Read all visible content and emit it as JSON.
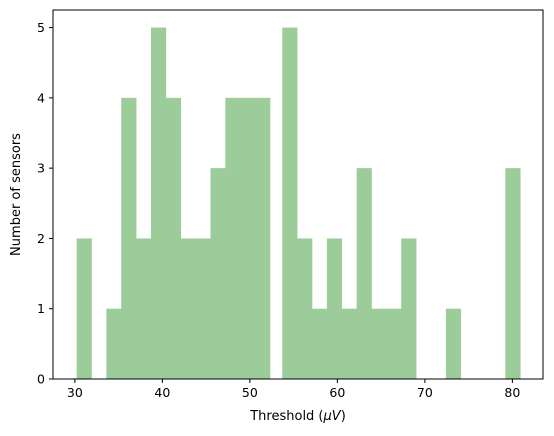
{
  "chart_data": {
    "type": "bar",
    "subtype": "histogram",
    "title": "",
    "xlabel": "Threshold (",
    "xlabel_unit": "μV",
    "xlabel_close": ")",
    "ylabel": "Number of sensors",
    "xlim": [
      27.5,
      83.5
    ],
    "ylim": [
      0,
      5.25
    ],
    "x_ticks": [
      30,
      40,
      50,
      60,
      70,
      80
    ],
    "y_ticks": [
      0,
      1,
      2,
      3,
      4,
      5
    ],
    "bar_color": "#9BCC99",
    "bins": [
      {
        "x0": 30.2,
        "x1": 31.9,
        "count": 2
      },
      {
        "x0": 33.6,
        "x1": 35.3,
        "count": 1
      },
      {
        "x0": 35.3,
        "x1": 37.0,
        "count": 4
      },
      {
        "x0": 37.0,
        "x1": 38.7,
        "count": 2
      },
      {
        "x0": 38.7,
        "x1": 40.4,
        "count": 5
      },
      {
        "x0": 40.4,
        "x1": 42.1,
        "count": 4
      },
      {
        "x0": 42.1,
        "x1": 43.8,
        "count": 2
      },
      {
        "x0": 43.8,
        "x1": 45.5,
        "count": 2
      },
      {
        "x0": 45.5,
        "x1": 47.2,
        "count": 3
      },
      {
        "x0": 47.2,
        "x1": 48.9,
        "count": 4
      },
      {
        "x0": 48.9,
        "x1": 50.6,
        "count": 4
      },
      {
        "x0": 50.6,
        "x1": 52.3,
        "count": 4
      },
      {
        "x0": 53.7,
        "x1": 55.4,
        "count": 5
      },
      {
        "x0": 55.4,
        "x1": 57.1,
        "count": 2
      },
      {
        "x0": 57.1,
        "x1": 58.8,
        "count": 1
      },
      {
        "x0": 58.8,
        "x1": 60.5,
        "count": 2
      },
      {
        "x0": 60.5,
        "x1": 62.2,
        "count": 1
      },
      {
        "x0": 62.2,
        "x1": 63.9,
        "count": 3
      },
      {
        "x0": 63.9,
        "x1": 65.6,
        "count": 1
      },
      {
        "x0": 65.6,
        "x1": 67.3,
        "count": 1
      },
      {
        "x0": 67.3,
        "x1": 69.0,
        "count": 2
      },
      {
        "x0": 72.4,
        "x1": 74.1,
        "count": 1
      },
      {
        "x0": 79.2,
        "x1": 80.9,
        "count": 3
      }
    ]
  }
}
